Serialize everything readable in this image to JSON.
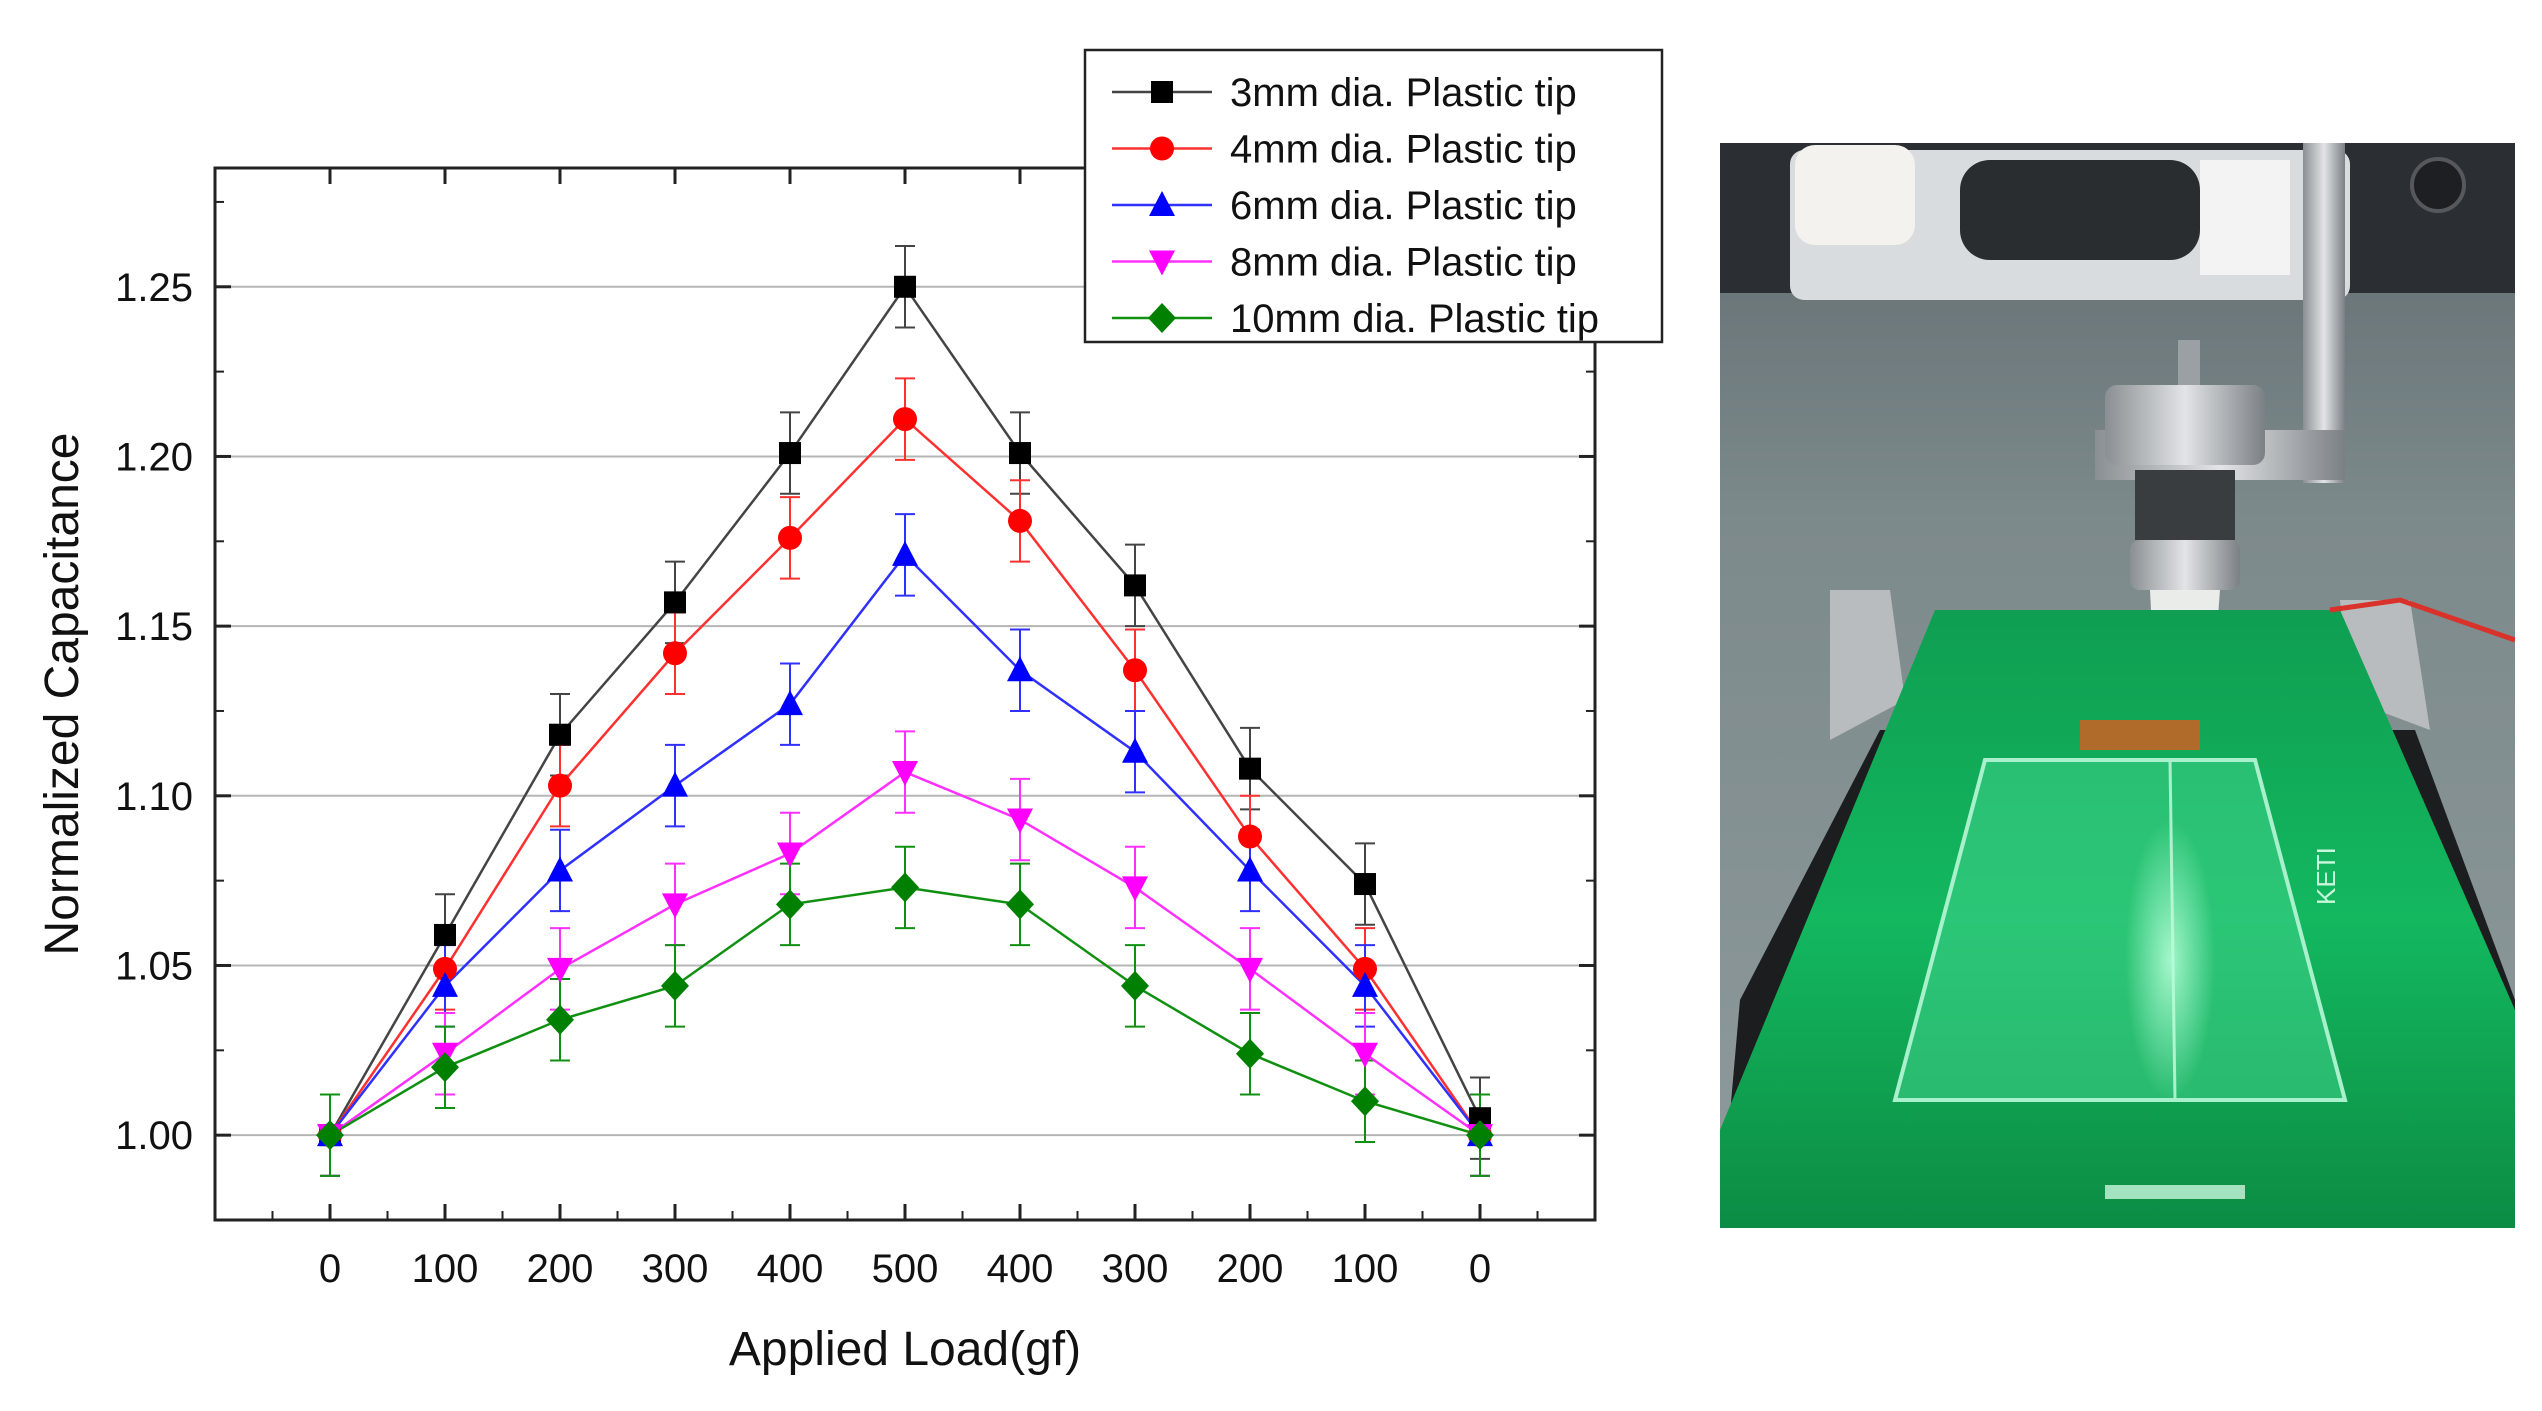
{
  "chart_data": {
    "type": "line",
    "xlabel": "Applied Load(gf)",
    "ylabel": "Normalized Capacitance",
    "categories": [
      "0",
      "100",
      "200",
      "300",
      "400",
      "500",
      "400",
      "300",
      "200",
      "100",
      "0"
    ],
    "ylim": [
      0.975,
      1.285
    ],
    "yticks": [
      "1.00",
      "1.05",
      "1.10",
      "1.15",
      "1.20",
      "1.25"
    ],
    "grid": "horizontal",
    "legend_position": "top-right",
    "error_bar": 0.012,
    "series": [
      {
        "name": "3mm dia. Plastic tip",
        "marker": "square",
        "color": "#000000",
        "line_color": "#444444",
        "values": [
          1.0,
          1.059,
          1.118,
          1.157,
          1.201,
          1.25,
          1.201,
          1.162,
          1.108,
          1.074,
          1.005
        ]
      },
      {
        "name": "4mm dia. Plastic tip",
        "marker": "circle",
        "color": "#ff0000",
        "line_color": "#ff3030",
        "values": [
          1.0,
          1.049,
          1.103,
          1.142,
          1.176,
          1.211,
          1.181,
          1.137,
          1.088,
          1.049,
          1.0
        ]
      },
      {
        "name": "6mm dia. Plastic tip",
        "marker": "triangle-up",
        "color": "#0000ff",
        "line_color": "#3030ff",
        "values": [
          1.0,
          1.044,
          1.078,
          1.103,
          1.127,
          1.171,
          1.137,
          1.113,
          1.078,
          1.044,
          1.0
        ]
      },
      {
        "name": "8mm dia. Plastic tip",
        "marker": "triangle-down",
        "color": "#ff00ff",
        "line_color": "#ff30ff",
        "values": [
          1.0,
          1.024,
          1.049,
          1.068,
          1.083,
          1.107,
          1.093,
          1.073,
          1.049,
          1.024,
          1.0
        ]
      },
      {
        "name": "10mm dia. Plastic tip",
        "marker": "diamond",
        "color": "#008000",
        "line_color": "#109010",
        "values": [
          1.0,
          1.02,
          1.034,
          1.044,
          1.068,
          1.073,
          1.068,
          1.044,
          1.024,
          1.01,
          1.0
        ]
      }
    ]
  },
  "photo": {
    "subject": "capacitance-test-rig-photo",
    "board_label": "KETI"
  }
}
